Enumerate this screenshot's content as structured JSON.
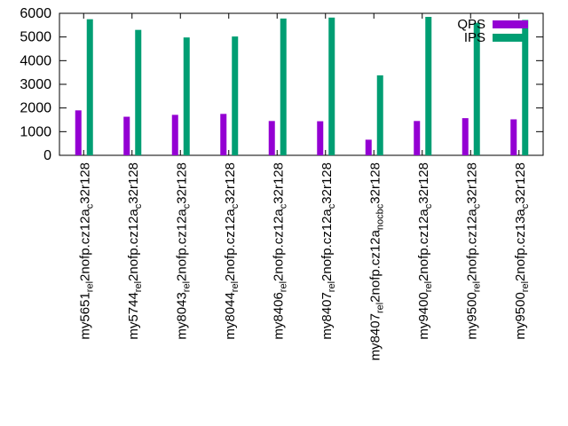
{
  "chart_data": {
    "type": "bar",
    "title": "",
    "xlabel": "",
    "ylabel": "",
    "ylim": [
      0,
      6000
    ],
    "yticks": [
      0,
      1000,
      2000,
      3000,
      4000,
      5000,
      6000
    ],
    "grid": false,
    "legend_position": "top-right",
    "categories": [
      {
        "main": "my5651",
        "parts": [
          [
            "sub",
            "rel"
          ],
          [
            "base",
            "2nofp.cz12a"
          ],
          [
            "sub",
            "c"
          ],
          [
            "base",
            "32r128"
          ]
        ]
      },
      {
        "main": "my5744",
        "parts": [
          [
            "sub",
            "rel"
          ],
          [
            "base",
            "2nofp.cz12a"
          ],
          [
            "sub",
            "c"
          ],
          [
            "base",
            "32r128"
          ]
        ]
      },
      {
        "main": "my8043",
        "parts": [
          [
            "sub",
            "rel"
          ],
          [
            "base",
            "2nofp.cz12a"
          ],
          [
            "sub",
            "c"
          ],
          [
            "base",
            "32r128"
          ]
        ]
      },
      {
        "main": "my8044",
        "parts": [
          [
            "sub",
            "rel"
          ],
          [
            "base",
            "2nofp.cz12a"
          ],
          [
            "sub",
            "c"
          ],
          [
            "base",
            "32r128"
          ]
        ]
      },
      {
        "main": "my8406",
        "parts": [
          [
            "sub",
            "rel"
          ],
          [
            "base",
            "2nofp.cz12a"
          ],
          [
            "sub",
            "c"
          ],
          [
            "base",
            "32r128"
          ]
        ]
      },
      {
        "main": "my8407",
        "parts": [
          [
            "sub",
            "rel"
          ],
          [
            "base",
            "2nofp.cz12a"
          ],
          [
            "sub",
            "c"
          ],
          [
            "base",
            "32r128"
          ]
        ]
      },
      {
        "main": "my8407",
        "parts": [
          [
            "sub",
            "rel"
          ],
          [
            "base",
            "2nofp.cz12a"
          ],
          [
            "sub",
            "nocb"
          ],
          [
            "sub",
            "c"
          ],
          [
            "base",
            "32r128"
          ]
        ]
      },
      {
        "main": "my9400",
        "parts": [
          [
            "sub",
            "rel"
          ],
          [
            "base",
            "2nofp.cz12a"
          ],
          [
            "sub",
            "c"
          ],
          [
            "base",
            "32r128"
          ]
        ]
      },
      {
        "main": "my9500",
        "parts": [
          [
            "sub",
            "rel"
          ],
          [
            "base",
            "2nofp.cz12a"
          ],
          [
            "sub",
            "c"
          ],
          [
            "base",
            "32r128"
          ]
        ]
      },
      {
        "main": "my9500",
        "parts": [
          [
            "sub",
            "rel"
          ],
          [
            "base",
            "2nofp.cz13a"
          ],
          [
            "sub",
            "c"
          ],
          [
            "base",
            "32r128"
          ]
        ]
      }
    ],
    "series": [
      {
        "name": "QPS",
        "color": "#9400d3",
        "values": [
          1900,
          1630,
          1710,
          1750,
          1450,
          1440,
          660,
          1450,
          1570,
          1520
        ]
      },
      {
        "name": "IPS",
        "color": "#009e73",
        "values": [
          5750,
          5300,
          4980,
          5020,
          5780,
          5820,
          3380,
          5850,
          5600,
          5720
        ]
      }
    ]
  }
}
